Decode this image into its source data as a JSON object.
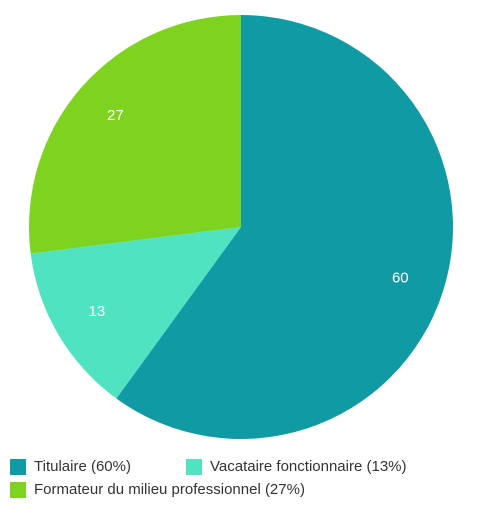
{
  "chart_data": {
    "type": "pie",
    "categories": [
      "Titulaire (60%)",
      "Vacataire fonctionnaire (13%)",
      "Formateur du milieu professionnel (27%)"
    ],
    "values": [
      60,
      13,
      27
    ],
    "colors": [
      "#0f9aa4",
      "#50e3c2",
      "#7ed321"
    ],
    "legend": "bottom"
  }
}
